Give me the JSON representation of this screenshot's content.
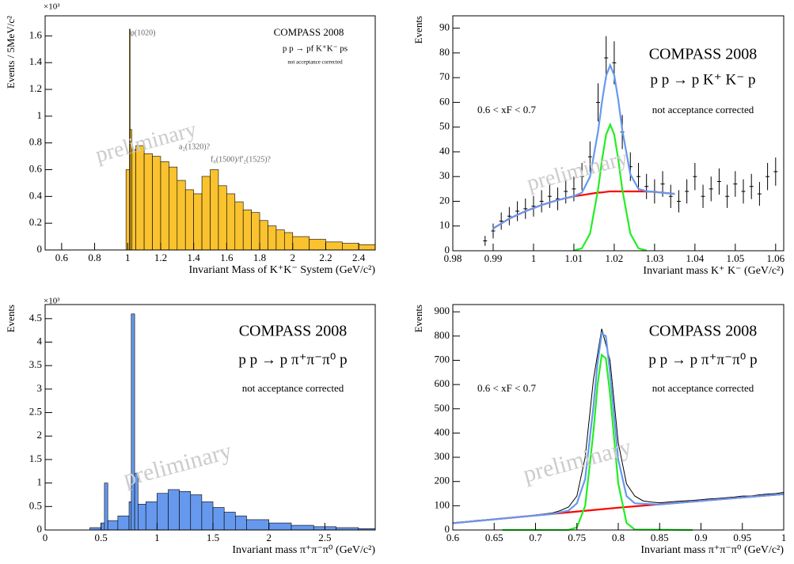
{
  "chart_data": [
    {
      "type": "histogram",
      "x_label": "Invariant Mass of K⁺K⁻ System (GeV/c²)",
      "y_label": "Events / 5MeV/c²",
      "color": "#f9c22e",
      "edge_color": "#000000",
      "bins": [
        0.99,
        1.01,
        1.015,
        1.025,
        1.05,
        1.1,
        1.15,
        1.2,
        1.25,
        1.3,
        1.35,
        1.4,
        1.45,
        1.5,
        1.55,
        1.6,
        1.65,
        1.7,
        1.75,
        1.8,
        1.85,
        1.9,
        1.95,
        2.0,
        2.1,
        2.2,
        2.3,
        2.4,
        2.5
      ],
      "values": [
        0.6,
        1.65,
        0.9,
        0.75,
        0.78,
        0.72,
        0.7,
        0.66,
        0.62,
        0.52,
        0.45,
        0.42,
        0.55,
        0.6,
        0.48,
        0.42,
        0.36,
        0.3,
        0.28,
        0.22,
        0.18,
        0.15,
        0.13,
        0.1,
        0.08,
        0.06,
        0.05,
        0.04
      ],
      "xlim": [
        0.5,
        2.5
      ],
      "xticks": [
        0.6,
        0.8,
        1,
        1.2,
        1.4,
        1.6,
        1.8,
        2,
        2.2,
        2.4
      ],
      "ylim": [
        0,
        1.75
      ],
      "yticks": [
        0,
        0.2,
        0.4,
        0.6,
        0.8,
        1,
        1.2,
        1.4,
        1.6
      ],
      "annotations": [
        "COMPASS 2008",
        "p p → pf K⁺K⁻ ps",
        "not acceptance corrected",
        "φ(1020)",
        "a₂(1320)?",
        "f₀(1500)/f'₂(1525)?",
        "preliminary",
        "×10³"
      ]
    },
    {
      "type": "scatter",
      "x_label": "Invariant mass K⁺ K⁻ (GeV/c²)",
      "y_label": "Events",
      "xlim": [
        0.98,
        1.062
      ],
      "xticks": [
        0.98,
        0.99,
        1,
        1.01,
        1.02,
        1.03,
        1.04,
        1.05,
        1.06
      ],
      "ylim": [
        0,
        95
      ],
      "yticks": [
        0,
        10,
        20,
        30,
        40,
        50,
        60,
        70,
        80,
        90
      ],
      "series": [
        {
          "type": "errorbar",
          "color": "#000000",
          "x": [
            0.988,
            0.99,
            0.992,
            0.994,
            0.996,
            0.998,
            1.0,
            1.002,
            1.004,
            1.006,
            1.008,
            1.01,
            1.012,
            1.014,
            1.016,
            1.018,
            1.02,
            1.022,
            1.024,
            1.026,
            1.028,
            1.03,
            1.032,
            1.034,
            1.036,
            1.038,
            1.04,
            1.042,
            1.044,
            1.046,
            1.048,
            1.05,
            1.052,
            1.054,
            1.056,
            1.058,
            1.06
          ],
          "values": [
            4,
            8,
            12,
            14,
            16,
            17,
            18,
            20,
            22,
            21,
            24,
            25,
            30,
            38,
            60,
            78,
            76,
            48,
            34,
            30,
            26,
            24,
            27,
            22,
            20,
            24,
            30,
            22,
            25,
            28,
            22,
            27,
            24,
            26,
            23,
            30,
            32
          ],
          "errors": [
            2,
            3,
            3.5,
            3.7,
            4,
            4.1,
            4.2,
            4.5,
            4.7,
            4.6,
            4.9,
            5,
            5.5,
            6.2,
            7.7,
            8.8,
            8.7,
            6.9,
            5.8,
            5.5,
            5.1,
            4.9,
            5.2,
            4.7,
            4.5,
            4.9,
            5.5,
            4.7,
            5,
            5.3,
            4.7,
            5.2,
            4.9,
            5.1,
            4.8,
            5.5,
            5.7
          ]
        },
        {
          "type": "line",
          "color": "#ff0000",
          "x": [
            0.99,
            0.994,
            0.998,
            1.002,
            1.006,
            1.01,
            1.012,
            1.014,
            1.016,
            1.017,
            1.018,
            1.019,
            1.02,
            1.021,
            1.022,
            1.024,
            1.026,
            1.028,
            1.03,
            1.035
          ],
          "values": [
            9,
            13,
            16,
            18.5,
            20.5,
            22,
            22.5,
            23,
            23.5,
            23.6,
            23.8,
            24,
            24,
            24,
            24,
            24,
            24,
            24,
            23.8,
            23
          ]
        },
        {
          "type": "line",
          "color": "#22ee22",
          "x": [
            1.01,
            1.012,
            1.014,
            1.016,
            1.017,
            1.018,
            1.019,
            1.02,
            1.021,
            1.022,
            1.024,
            1.026,
            1.028
          ],
          "values": [
            0.1,
            1,
            6.9,
            24.8,
            37,
            47,
            51,
            47,
            37,
            24.8,
            6.9,
            1,
            0.1
          ]
        },
        {
          "type": "line",
          "color": "#6699ee",
          "x": [
            0.99,
            0.994,
            0.998,
            1.002,
            1.006,
            1.01,
            1.012,
            1.014,
            1.016,
            1.017,
            1.018,
            1.019,
            1.02,
            1.021,
            1.022,
            1.024,
            1.026,
            1.028,
            1.03,
            1.035
          ],
          "values": [
            9,
            13,
            16,
            18.5,
            20.5,
            22.1,
            23.5,
            29.9,
            48.3,
            60.6,
            70.8,
            75,
            71,
            61,
            48.8,
            30.9,
            25,
            24.1,
            23.8,
            23
          ]
        }
      ],
      "annotations": [
        "COMPASS 2008",
        "p p → p K⁺ K⁻ p",
        "0.6 < xF < 0.7",
        "not acceptance corrected",
        "preliminary"
      ]
    },
    {
      "type": "histogram",
      "x_label": "Invariant mass π⁺π⁻π⁰ (GeV/c²)",
      "y_label": "Events",
      "color": "#6699ee",
      "edge_color": "#000000",
      "bins": [
        0.4,
        0.5,
        0.53,
        0.56,
        0.65,
        0.75,
        0.77,
        0.8,
        0.83,
        0.9,
        1.0,
        1.1,
        1.2,
        1.3,
        1.4,
        1.5,
        1.6,
        1.7,
        1.8,
        2.0,
        2.2,
        2.4,
        2.6,
        2.8,
        2.95
      ],
      "values": [
        0.05,
        0.15,
        1.0,
        0.2,
        0.3,
        0.6,
        4.6,
        1.2,
        0.55,
        0.6,
        0.78,
        0.86,
        0.82,
        0.75,
        0.6,
        0.48,
        0.38,
        0.3,
        0.22,
        0.15,
        0.1,
        0.07,
        0.05,
        0.03
      ],
      "xlim": [
        0,
        2.95
      ],
      "xticks": [
        0,
        0.5,
        1,
        1.5,
        2,
        2.5
      ],
      "ylim": [
        0,
        4.8
      ],
      "yticks": [
        0,
        0.5,
        1,
        1.5,
        2,
        2.5,
        3,
        3.5,
        4,
        4.5
      ],
      "annotations": [
        "COMPASS 2008",
        "p p → p π⁺π⁻π⁰ p",
        "not acceptance corrected",
        "preliminary",
        "×10³"
      ]
    },
    {
      "type": "scatter",
      "x_label": "Invariant mass π⁺π⁻π⁰ (GeV/c²)",
      "y_label": "Events",
      "xlim": [
        0.6,
        1.0
      ],
      "xticks": [
        0.6,
        0.65,
        0.7,
        0.75,
        0.8,
        0.85,
        0.9,
        0.95,
        1
      ],
      "ylim": [
        0,
        930
      ],
      "yticks": [
        0,
        100,
        200,
        300,
        400,
        500,
        600,
        700,
        800,
        900
      ],
      "series": [
        {
          "type": "line",
          "color": "#000000",
          "x": [
            0.6,
            0.61,
            0.62,
            0.63,
            0.64,
            0.65,
            0.66,
            0.67,
            0.68,
            0.69,
            0.7,
            0.71,
            0.72,
            0.73,
            0.74,
            0.75,
            0.76,
            0.77,
            0.78,
            0.79,
            0.8,
            0.81,
            0.82,
            0.83,
            0.84,
            0.85,
            0.86,
            0.87,
            0.88,
            0.89,
            0.9,
            0.91,
            0.92,
            0.93,
            0.94,
            0.95,
            0.96,
            0.97,
            0.98,
            0.99,
            1.0
          ],
          "values": [
            30,
            33,
            36,
            40,
            42,
            45,
            48,
            52,
            55,
            58,
            62,
            66,
            70,
            80,
            95,
            140,
            300,
            620,
            830,
            700,
            360,
            190,
            140,
            120,
            115,
            112,
            115,
            118,
            120,
            122,
            125,
            128,
            130,
            133,
            136,
            140,
            140,
            145,
            148,
            150,
            155
          ]
        },
        {
          "type": "line",
          "color": "#ff0000",
          "x": [
            0.6,
            0.7,
            0.8,
            0.9,
            1.0
          ],
          "values": [
            28,
            60,
            92,
            120,
            148
          ]
        },
        {
          "type": "line",
          "color": "#22ee22",
          "x": [
            0.66,
            0.74,
            0.75,
            0.76,
            0.77,
            0.775,
            0.78,
            0.785,
            0.79,
            0.8,
            0.81,
            0.82,
            0.89
          ],
          "values": [
            0,
            0.5,
            10.7,
            99,
            406,
            600,
            722,
            708,
            564,
            192,
            29,
            2,
            0
          ]
        },
        {
          "type": "line",
          "color": "#6699ee",
          "x": [
            0.6,
            0.66,
            0.72,
            0.74,
            0.75,
            0.76,
            0.77,
            0.775,
            0.78,
            0.785,
            0.79,
            0.8,
            0.81,
            0.82,
            0.85,
            0.9,
            1.0
          ],
          "values": [
            28,
            47,
            66,
            80,
            110,
            210,
            510,
            690,
            810,
            800,
            650,
            290,
            140,
            110,
            105,
            120,
            148
          ]
        }
      ],
      "annotations": [
        "COMPASS 2008",
        "p p → p π⁺π⁻π⁰ p",
        "0.6 < xF < 0.7",
        "not acceptance corrected",
        "preliminary"
      ]
    }
  ]
}
